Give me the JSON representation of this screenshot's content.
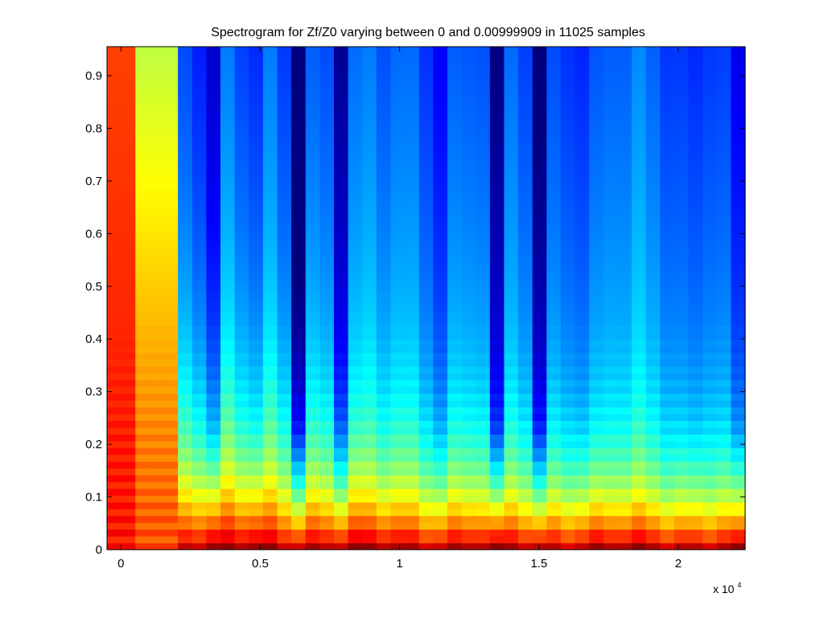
{
  "chart_data": {
    "type": "heatmap",
    "title": "Spectrogram for Zf/Z0 varying between 0 and 0.00999909 in 11025 samples",
    "xlabel": "",
    "ylabel": "",
    "x_exponent_label": "x 10",
    "x_exponent_power": "4",
    "xlim": [
      -0.05,
      2.24
    ],
    "ylim": [
      0,
      0.955
    ],
    "x_ticks": [
      0,
      0.5,
      1,
      1.5,
      2
    ],
    "x_tick_labels": [
      "0",
      "0.5",
      "1",
      "1.5",
      "2"
    ],
    "y_ticks": [
      0,
      0.1,
      0.2,
      0.3,
      0.4,
      0.5,
      0.6,
      0.7,
      0.8,
      0.9
    ],
    "y_tick_labels": [
      "0",
      "0.1",
      "0.2",
      "0.3",
      "0.4",
      "0.5",
      "0.6",
      "0.7",
      "0.8",
      "0.9"
    ],
    "colormap": "jet",
    "grid": false,
    "deep_columns_x": [
      0.32,
      0.64,
      0.8,
      1.35,
      1.51,
      2.2
    ],
    "medium_columns_x": [
      0.47,
      1.16,
      1.68,
      2.04
    ],
    "dark_columns_x": [
      0.64,
      1.35,
      1.51
    ]
  }
}
